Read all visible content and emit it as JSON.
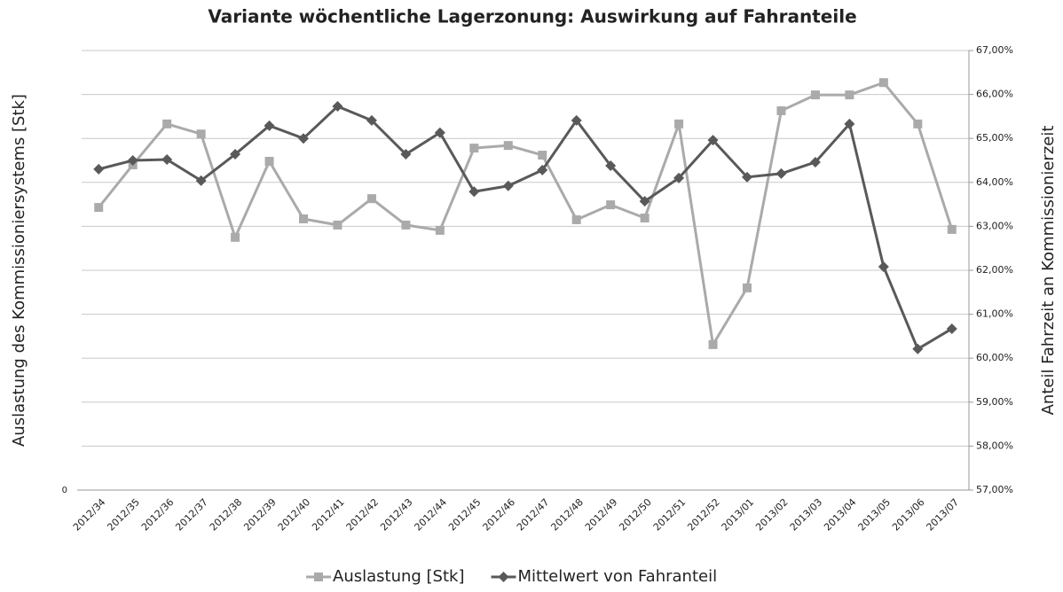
{
  "chart_data": {
    "type": "line",
    "title": "Variante wöchentliche Lagerzonung: Auswirkung auf Fahranteile",
    "y_label": "Auslastung des Kommissioniersystems [Stk]",
    "y2_label": "Anteil Fahrzeit an Kommissionierzeit",
    "categories": [
      "2012/34",
      "2012/35",
      "2012/36",
      "2012/37",
      "2012/38",
      "2012/39",
      "2012/40",
      "2012/41",
      "2012/42",
      "2012/43",
      "2012/44",
      "2012/45",
      "2012/46",
      "2012/47",
      "2012/48",
      "2012/49",
      "2012/50",
      "2012/51",
      "2012/52",
      "2013/01",
      "2013/02",
      "2013/03",
      "2013/04",
      "2013/05",
      "2013/06",
      "2013/07"
    ],
    "series": [
      {
        "name": "Auslastung [Stk]",
        "color": "#aaaaaa",
        "marker": "square",
        "values": [
          6.43,
          7.4,
          8.33,
          8.1,
          5.75,
          7.48,
          6.17,
          6.03,
          6.63,
          6.03,
          5.91,
          7.78,
          7.84,
          7.62,
          6.15,
          6.49,
          6.19,
          8.33,
          3.31,
          4.6,
          8.63,
          8.99,
          8.99,
          9.27,
          8.33,
          5.93
        ]
      },
      {
        "name": "Mittelwert von Fahranteil",
        "color": "#595959",
        "marker": "diamond",
        "axis": "y2",
        "values": [
          64.3,
          64.5,
          64.52,
          64.04,
          64.64,
          65.29,
          65.0,
          65.73,
          65.41,
          64.64,
          65.13,
          63.79,
          63.92,
          64.28,
          65.41,
          64.38,
          63.57,
          64.1,
          64.96,
          64.12,
          64.2,
          64.46,
          65.33,
          62.08,
          60.21,
          60.67
        ]
      }
    ],
    "ylim": [
      0,
      10
    ],
    "yticks": [
      0
    ],
    "y2lim": [
      57,
      67
    ],
    "y2ticks": [
      {
        "value": 57,
        "label": "57,00%"
      },
      {
        "value": 58,
        "label": "58,00%"
      },
      {
        "value": 59,
        "label": "59,00%"
      },
      {
        "value": 60,
        "label": "60,00%"
      },
      {
        "value": 61,
        "label": "61,00%"
      },
      {
        "value": 62,
        "label": "62,00%"
      },
      {
        "value": 63,
        "label": "63,00%"
      },
      {
        "value": 64,
        "label": "64,00%"
      },
      {
        "value": 65,
        "label": "65,00%"
      },
      {
        "value": 66,
        "label": "66,00%"
      },
      {
        "value": 67,
        "label": "67,00%"
      }
    ],
    "grid": true,
    "legend": "bottom"
  }
}
